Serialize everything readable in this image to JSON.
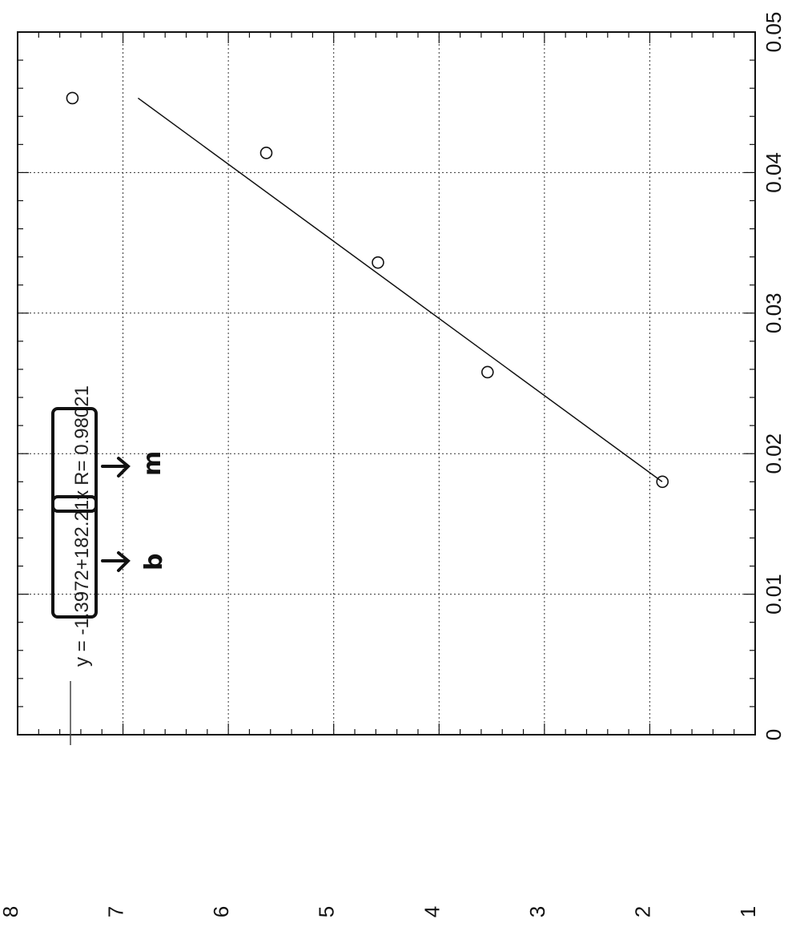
{
  "chart_data": {
    "type": "scatter",
    "title": "",
    "xlabel": "",
    "ylabel": "",
    "xlim": [
      0,
      0.05
    ],
    "ylim": [
      1,
      8
    ],
    "grid": true,
    "x_ticks": [
      "0",
      "0.01",
      "0.02",
      "0.03",
      "0.04",
      "0.05"
    ],
    "y_ticks": [
      "1",
      "2",
      "3",
      "4",
      "5",
      "6",
      "7",
      "8"
    ],
    "points": [
      {
        "x": 0.018,
        "y": 1.88
      },
      {
        "x": 0.0258,
        "y": 3.54
      },
      {
        "x": 0.0336,
        "y": 4.58
      },
      {
        "x": 0.0414,
        "y": 5.64
      },
      {
        "x": 0.0453,
        "y": 7.48
      }
    ],
    "fit": {
      "slope": 182.21,
      "intercept": -1.3972,
      "x_range": [
        0.018,
        0.0453
      ],
      "legend_prefix": "y = ",
      "intercept_label": "-1.3972",
      "plus": "+",
      "slope_label": "182.21x",
      "r_label": "R= 0.98021"
    },
    "annotations": {
      "intercept_mark": "b",
      "slope_mark": "m"
    }
  }
}
